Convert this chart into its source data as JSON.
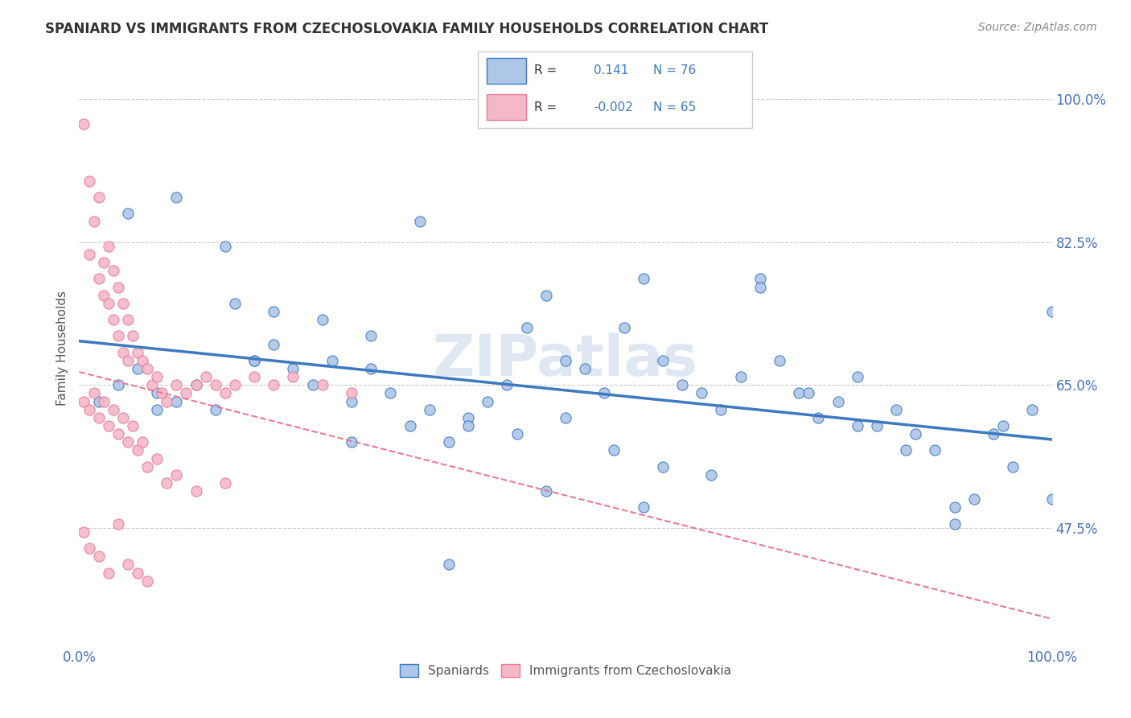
{
  "title": "SPANIARD VS IMMIGRANTS FROM CZECHOSLOVAKIA FAMILY HOUSEHOLDS CORRELATION CHART",
  "source": "Source: ZipAtlas.com",
  "ylabel": "Family Households",
  "ytick_labels": [
    "47.5%",
    "65.0%",
    "82.5%",
    "100.0%"
  ],
  "ytick_values": [
    0.475,
    0.65,
    0.825,
    1.0
  ],
  "xlim": [
    0.0,
    1.0
  ],
  "ylim": [
    0.33,
    1.06
  ],
  "r_blue": 0.141,
  "n_blue": 76,
  "r_pink": -0.002,
  "n_pink": 65,
  "color_blue": "#aec6e8",
  "color_pink": "#f4b8c8",
  "line_blue": "#3d7abf",
  "line_pink": "#e87a99",
  "watermark": "ZIPatlas",
  "legend_r_blue": "0.141",
  "legend_n_blue": "76",
  "legend_r_pink": "-0.002",
  "legend_n_pink": "65",
  "blue_x": [
    0.02,
    0.04,
    0.06,
    0.08,
    0.1,
    0.12,
    0.14,
    0.16,
    0.18,
    0.2,
    0.22,
    0.24,
    0.26,
    0.28,
    0.3,
    0.32,
    0.34,
    0.36,
    0.38,
    0.4,
    0.42,
    0.44,
    0.46,
    0.48,
    0.5,
    0.52,
    0.54,
    0.56,
    0.58,
    0.6,
    0.62,
    0.64,
    0.66,
    0.68,
    0.7,
    0.72,
    0.74,
    0.76,
    0.78,
    0.8,
    0.82,
    0.84,
    0.86,
    0.88,
    0.9,
    0.92,
    0.94,
    0.96,
    0.98,
    1.0,
    0.05,
    0.1,
    0.15,
    0.2,
    0.25,
    0.3,
    0.35,
    0.4,
    0.45,
    0.5,
    0.55,
    0.6,
    0.65,
    0.7,
    0.75,
    0.8,
    0.85,
    0.9,
    0.95,
    1.0,
    0.08,
    0.18,
    0.28,
    0.38,
    0.48,
    0.58
  ],
  "blue_y": [
    0.63,
    0.65,
    0.67,
    0.64,
    0.63,
    0.65,
    0.62,
    0.75,
    0.68,
    0.7,
    0.67,
    0.65,
    0.68,
    0.63,
    0.67,
    0.64,
    0.6,
    0.62,
    0.58,
    0.61,
    0.63,
    0.65,
    0.72,
    0.76,
    0.68,
    0.67,
    0.64,
    0.72,
    0.78,
    0.68,
    0.65,
    0.64,
    0.62,
    0.66,
    0.78,
    0.68,
    0.64,
    0.61,
    0.63,
    0.66,
    0.6,
    0.62,
    0.59,
    0.57,
    0.5,
    0.51,
    0.59,
    0.55,
    0.62,
    0.51,
    0.86,
    0.88,
    0.82,
    0.74,
    0.73,
    0.71,
    0.85,
    0.6,
    0.59,
    0.61,
    0.57,
    0.55,
    0.54,
    0.77,
    0.64,
    0.6,
    0.57,
    0.48,
    0.6,
    0.74,
    0.62,
    0.68,
    0.58,
    0.43,
    0.52,
    0.5
  ],
  "pink_x": [
    0.005,
    0.01,
    0.01,
    0.015,
    0.02,
    0.02,
    0.025,
    0.025,
    0.03,
    0.03,
    0.035,
    0.035,
    0.04,
    0.04,
    0.045,
    0.045,
    0.05,
    0.05,
    0.055,
    0.06,
    0.065,
    0.07,
    0.075,
    0.08,
    0.085,
    0.09,
    0.1,
    0.11,
    0.12,
    0.13,
    0.14,
    0.15,
    0.16,
    0.18,
    0.2,
    0.22,
    0.25,
    0.28,
    0.005,
    0.01,
    0.015,
    0.02,
    0.025,
    0.03,
    0.035,
    0.04,
    0.045,
    0.05,
    0.055,
    0.06,
    0.065,
    0.07,
    0.08,
    0.09,
    0.1,
    0.12,
    0.15,
    0.005,
    0.01,
    0.02,
    0.03,
    0.04,
    0.05,
    0.06,
    0.07
  ],
  "pink_y": [
    0.97,
    0.9,
    0.81,
    0.85,
    0.88,
    0.78,
    0.8,
    0.76,
    0.82,
    0.75,
    0.79,
    0.73,
    0.77,
    0.71,
    0.75,
    0.69,
    0.73,
    0.68,
    0.71,
    0.69,
    0.68,
    0.67,
    0.65,
    0.66,
    0.64,
    0.63,
    0.65,
    0.64,
    0.65,
    0.66,
    0.65,
    0.64,
    0.65,
    0.66,
    0.65,
    0.66,
    0.65,
    0.64,
    0.63,
    0.62,
    0.64,
    0.61,
    0.63,
    0.6,
    0.62,
    0.59,
    0.61,
    0.58,
    0.6,
    0.57,
    0.58,
    0.55,
    0.56,
    0.53,
    0.54,
    0.52,
    0.53,
    0.47,
    0.45,
    0.44,
    0.42,
    0.48,
    0.43,
    0.42,
    0.41
  ]
}
